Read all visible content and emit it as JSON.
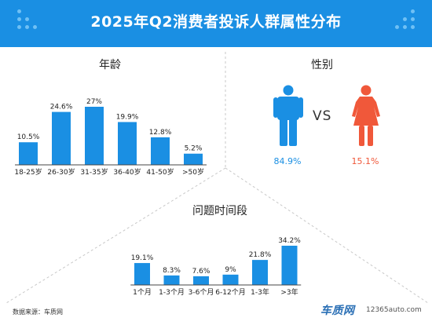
{
  "header": {
    "title": "2025年Q2消费者投诉人群属性分布"
  },
  "age_section": {
    "title": "年龄"
  },
  "gender_section": {
    "title": "性别",
    "vs": "VS",
    "male_pct": "84.9%",
    "female_pct": "15.1%",
    "male_color": "#1a8fe3",
    "female_color": "#f0583a"
  },
  "issue_section": {
    "title": "问题时间段"
  },
  "footer": {
    "source": "数据来源：车质网",
    "logo_text": "车质网",
    "logo_url": "12365auto.com"
  },
  "colors": {
    "accent": "#1a8fe3",
    "banner": "#1a8fe3",
    "female": "#f0583a"
  },
  "chart_data": [
    {
      "type": "bar",
      "title": "年龄",
      "categories": [
        "18-25岁",
        "26-30岁",
        "31-35岁",
        "36-40岁",
        "41-50岁",
        ">50岁"
      ],
      "values": [
        10.5,
        24.6,
        27,
        19.9,
        12.8,
        5.2
      ],
      "labels": [
        "10.5%",
        "24.6%",
        "27%",
        "19.9%",
        "12.8%",
        "5.2%"
      ],
      "ylim": [
        0,
        27
      ]
    },
    {
      "type": "pie",
      "title": "性别",
      "categories": [
        "男",
        "女"
      ],
      "values": [
        84.9,
        15.1
      ],
      "labels": [
        "84.9%",
        "15.1%"
      ]
    },
    {
      "type": "bar",
      "title": "问题时间段",
      "categories": [
        "1个月",
        "1-3个月",
        "3-6个月",
        "6-12个月",
        "1-3年",
        ">3年"
      ],
      "values": [
        19.1,
        8.3,
        7.6,
        9,
        21.8,
        34.2
      ],
      "labels": [
        "19.1%",
        "8.3%",
        "7.6%",
        "9%",
        "21.8%",
        "34.2%"
      ],
      "ylim": [
        0,
        34.2
      ]
    }
  ]
}
